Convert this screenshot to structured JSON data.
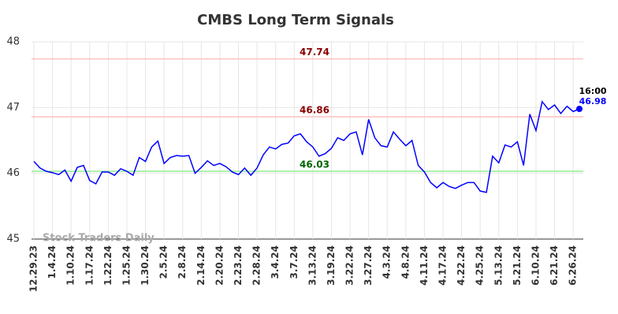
{
  "chart_data": {
    "type": "line",
    "title": "CMBS Long Term Signals",
    "categories": [
      "12.29.23",
      null,
      null,
      "1.4.24",
      null,
      null,
      "1.10.24",
      null,
      null,
      "1.17.24",
      null,
      null,
      "1.22.24",
      null,
      null,
      "1.25.24",
      null,
      null,
      "1.30.24",
      null,
      null,
      "2.5.24",
      null,
      null,
      "2.8.24",
      null,
      null,
      "2.14.24",
      null,
      null,
      "2.20.24",
      null,
      null,
      "2.23.24",
      null,
      null,
      "2.28.24",
      null,
      null,
      "3.4.24",
      null,
      null,
      "3.7.24",
      null,
      null,
      "3.13.24",
      null,
      null,
      "3.19.24",
      null,
      null,
      "3.22.24",
      null,
      null,
      "3.27.24",
      null,
      null,
      "4.3.24",
      null,
      null,
      "4.8.24",
      null,
      null,
      "4.11.24",
      null,
      null,
      "4.17.24",
      null,
      null,
      "4.22.24",
      null,
      null,
      "4.25.24",
      null,
      null,
      "5.13.24",
      null,
      null,
      "5.21.24",
      null,
      null,
      "6.10.24",
      null,
      null,
      "6.21.24",
      null,
      null,
      "6.26.24",
      null
    ],
    "values": [
      46.18,
      46.08,
      46.03,
      46.01,
      45.98,
      46.05,
      45.88,
      46.09,
      46.12,
      45.89,
      45.84,
      46.02,
      46.02,
      45.97,
      46.07,
      46.03,
      45.97,
      46.24,
      46.18,
      46.4,
      46.49,
      46.15,
      46.24,
      46.27,
      46.26,
      46.27,
      46.0,
      46.09,
      46.19,
      46.12,
      46.15,
      46.1,
      46.02,
      45.98,
      46.08,
      45.97,
      46.08,
      46.28,
      46.4,
      46.37,
      46.44,
      46.46,
      46.57,
      46.6,
      46.48,
      46.4,
      46.26,
      46.3,
      46.38,
      46.54,
      46.5,
      46.6,
      46.63,
      46.28,
      46.82,
      46.54,
      46.42,
      46.4,
      46.63,
      46.52,
      46.42,
      46.5,
      46.12,
      46.02,
      45.86,
      45.78,
      45.86,
      45.8,
      45.77,
      45.82,
      45.86,
      45.86,
      45.73,
      45.71,
      46.26,
      46.16,
      46.43,
      46.4,
      46.48,
      46.12,
      46.9,
      46.65,
      47.09,
      46.97,
      47.04,
      46.91,
      47.02,
      46.94,
      46.98
    ],
    "color": "#0000ff",
    "ylim": [
      45,
      48
    ],
    "yticks": [
      45,
      46,
      47,
      48
    ],
    "grid": true,
    "hlines": [
      {
        "value": 47.74,
        "color": "#ffc0c0",
        "label_color": "#8b0000"
      },
      {
        "value": 46.86,
        "color": "#ffc0c0",
        "label_color": "#8b0000"
      },
      {
        "value": 46.03,
        "color": "#90ee90",
        "label_color": "#006400"
      }
    ],
    "last_time": "16:00",
    "watermark": "Stock Traders Daily"
  }
}
